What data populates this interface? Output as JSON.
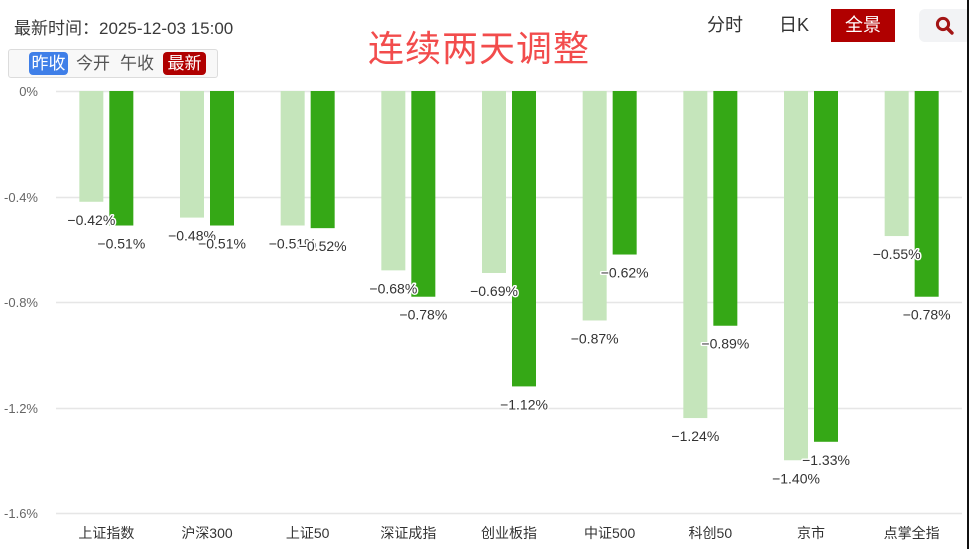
{
  "header": {
    "time_text": "最新时间：2025-12-03 15:00",
    "headline": "连续两天调整"
  },
  "toggles": [
    {
      "label": "昨收",
      "active": true,
      "color": "#3f7fe8"
    },
    {
      "label": "今开",
      "active": false
    },
    {
      "label": "午收",
      "active": false
    },
    {
      "label": "最新",
      "active": true,
      "color": "#b00000"
    }
  ],
  "views": [
    {
      "label": "分时",
      "active": false
    },
    {
      "label": "日K",
      "active": false
    },
    {
      "label": "全景",
      "active": true,
      "color": "#b00000"
    }
  ],
  "search": {
    "icon": "search-icon",
    "icon_color": "#a31515"
  },
  "colors": {
    "headline": "#f24c4c",
    "series_prev_close": "#c5e5bb",
    "series_latest": "#35a816",
    "gridline": "#e6e6e6"
  },
  "chart_data": {
    "type": "bar",
    "title": "连续两天调整",
    "xlabel": "",
    "ylabel": "",
    "categories": [
      "上证指数",
      "沪深300",
      "上证50",
      "深证成指",
      "创业板指",
      "中证500",
      "科创50",
      "京市",
      "点掌全指"
    ],
    "series": [
      {
        "name": "昨收",
        "color": "#c5e5bb",
        "values": [
          -0.42,
          -0.48,
          -0.51,
          -0.68,
          -0.69,
          -0.87,
          -1.24,
          -1.4,
          -0.55
        ]
      },
      {
        "name": "最新",
        "color": "#35a816",
        "values": [
          -0.51,
          -0.51,
          -0.52,
          -0.78,
          -1.12,
          -0.62,
          -0.89,
          -1.33,
          -0.78
        ]
      }
    ],
    "value_format": "percent_2dp",
    "yticks": [
      "0%",
      "-0.4%",
      "-0.8%",
      "-1.2%",
      "-1.6%"
    ],
    "ytick_values": [
      0,
      -0.4,
      -0.8,
      -1.2,
      -1.6
    ],
    "ylim": [
      -1.6,
      0
    ],
    "grid": true,
    "legend": "none (series selected via 昨收 / 最新 toggles)"
  }
}
